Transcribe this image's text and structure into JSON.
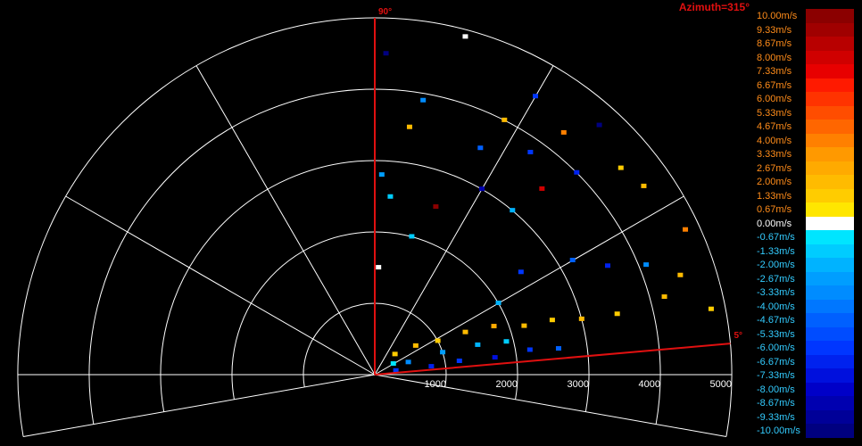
{
  "title": "Azimuth=315°",
  "chart_data": {
    "type": "scatter",
    "subtype": "polar-sector-doppler",
    "title": "Azimuth=315°",
    "radius_range": [
      0,
      5000
    ],
    "radial_ticks": [
      "1000",
      "2000",
      "3000",
      "4000",
      "5000"
    ],
    "elevation_range_deg": [
      5,
      90
    ],
    "angle_labels": [
      "90°",
      "5°"
    ],
    "grid": true,
    "colorbar": {
      "placement": "right",
      "labels": [
        "10.00m/s",
        "9.33m/s",
        "8.67m/s",
        "8.00m/s",
        "7.33m/s",
        "6.67m/s",
        "6.00m/s",
        "5.33m/s",
        "4.67m/s",
        "4.00m/s",
        "3.33m/s",
        "2.67m/s",
        "2.00m/s",
        "1.33m/s",
        "0.67m/s",
        "0.00m/s",
        "-0.67m/s",
        "-1.33m/s",
        "-2.00m/s",
        "-2.67m/s",
        "-3.33m/s",
        "-4.00m/s",
        "-4.67m/s",
        "-5.33m/s",
        "-6.00m/s",
        "-6.67m/s",
        "-7.33m/s",
        "-8.00m/s",
        "-8.67m/s",
        "-9.33m/s",
        "-10.00m/s"
      ],
      "colors": [
        "#8b0000",
        "#a00000",
        "#b80000",
        "#d00000",
        "#e80000",
        "#ff1a00",
        "#ff3300",
        "#ff4d00",
        "#ff6600",
        "#ff8000",
        "#ff9900",
        "#ffaa00",
        "#ffbb00",
        "#ffcc00",
        "#ffe600",
        "#ffffff",
        "#00e5ff",
        "#00ccff",
        "#00b3ff",
        "#009eff",
        "#008cff",
        "#0077ff",
        "#0060ff",
        "#004cff",
        "#0036ff",
        "#0022ee",
        "#0010dd",
        "#0000c8",
        "#0000b0",
        "#000098",
        "#000080"
      ]
    },
    "points": [
      {
        "range": 300,
        "elev": 10,
        "v": -6.0
      },
      {
        "range": 800,
        "elev": 8,
        "v": -6.67
      },
      {
        "range": 1200,
        "elev": 9,
        "v": -6.0
      },
      {
        "range": 1700,
        "elev": 8,
        "v": -7.33
      },
      {
        "range": 2200,
        "elev": 9,
        "v": -6.0
      },
      {
        "range": 2600,
        "elev": 8,
        "v": -4.67
      },
      {
        "range": 500,
        "elev": 20,
        "v": -3.33
      },
      {
        "range": 1000,
        "elev": 18,
        "v": -2.67
      },
      {
        "range": 1500,
        "elev": 16,
        "v": -2.0
      },
      {
        "range": 1900,
        "elev": 14,
        "v": -1.33
      },
      {
        "range": 300,
        "elev": 30,
        "v": -0.67
      },
      {
        "range": 400,
        "elev": 45,
        "v": 1.33
      },
      {
        "range": 700,
        "elev": 35,
        "v": 2.0
      },
      {
        "range": 1000,
        "elev": 28,
        "v": 1.33
      },
      {
        "range": 1400,
        "elev": 25,
        "v": 2.0
      },
      {
        "range": 1800,
        "elev": 22,
        "v": 2.67
      },
      {
        "range": 2200,
        "elev": 18,
        "v": 2.0
      },
      {
        "range": 2600,
        "elev": 17,
        "v": 1.33
      },
      {
        "range": 3000,
        "elev": 15,
        "v": 2.0
      },
      {
        "range": 3500,
        "elev": 14,
        "v": 1.33
      },
      {
        "range": 4200,
        "elev": 15,
        "v": 2.0
      },
      {
        "range": 4800,
        "elev": 11,
        "v": 1.33
      },
      {
        "range": 2000,
        "elev": 30,
        "v": -2.0
      },
      {
        "range": 2500,
        "elev": 35,
        "v": -6.0
      },
      {
        "range": 3200,
        "elev": 30,
        "v": -4.67
      },
      {
        "range": 3600,
        "elev": 25,
        "v": -6.67
      },
      {
        "range": 4100,
        "elev": 22,
        "v": -3.33
      },
      {
        "range": 4500,
        "elev": 18,
        "v": 2.0
      },
      {
        "range": 3000,
        "elev": 50,
        "v": -2.0
      },
      {
        "range": 3500,
        "elev": 48,
        "v": 8.0
      },
      {
        "range": 4000,
        "elev": 45,
        "v": -6.67
      },
      {
        "range": 4500,
        "elev": 40,
        "v": 1.33
      },
      {
        "range": 4800,
        "elev": 25,
        "v": 4.0
      },
      {
        "range": 4600,
        "elev": 35,
        "v": 2.0
      },
      {
        "range": 2000,
        "elev": 75,
        "v": -1.33
      },
      {
        "range": 2500,
        "elev": 70,
        "v": 10.0
      },
      {
        "range": 3000,
        "elev": 60,
        "v": -8.67
      },
      {
        "range": 3800,
        "elev": 55,
        "v": -6.0
      },
      {
        "range": 4300,
        "elev": 52,
        "v": 4.0
      },
      {
        "range": 4700,
        "elev": 48,
        "v": -10.0
      },
      {
        "range": 3500,
        "elev": 65,
        "v": -4.67
      },
      {
        "range": 4000,
        "elev": 63,
        "v": 2.0
      },
      {
        "range": 4500,
        "elev": 60,
        "v": -6.0
      },
      {
        "range": 1500,
        "elev": 88,
        "v": 0.0
      },
      {
        "range": 2500,
        "elev": 85,
        "v": -1.33
      },
      {
        "range": 3500,
        "elev": 82,
        "v": 2.0
      },
      {
        "range": 4500,
        "elev": 88,
        "v": -10.0
      },
      {
        "range": 4900,
        "elev": 75,
        "v": 0.0
      },
      {
        "range": 2800,
        "elev": 88,
        "v": -2.67
      },
      {
        "range": 3900,
        "elev": 80,
        "v": -3.33
      }
    ]
  }
}
